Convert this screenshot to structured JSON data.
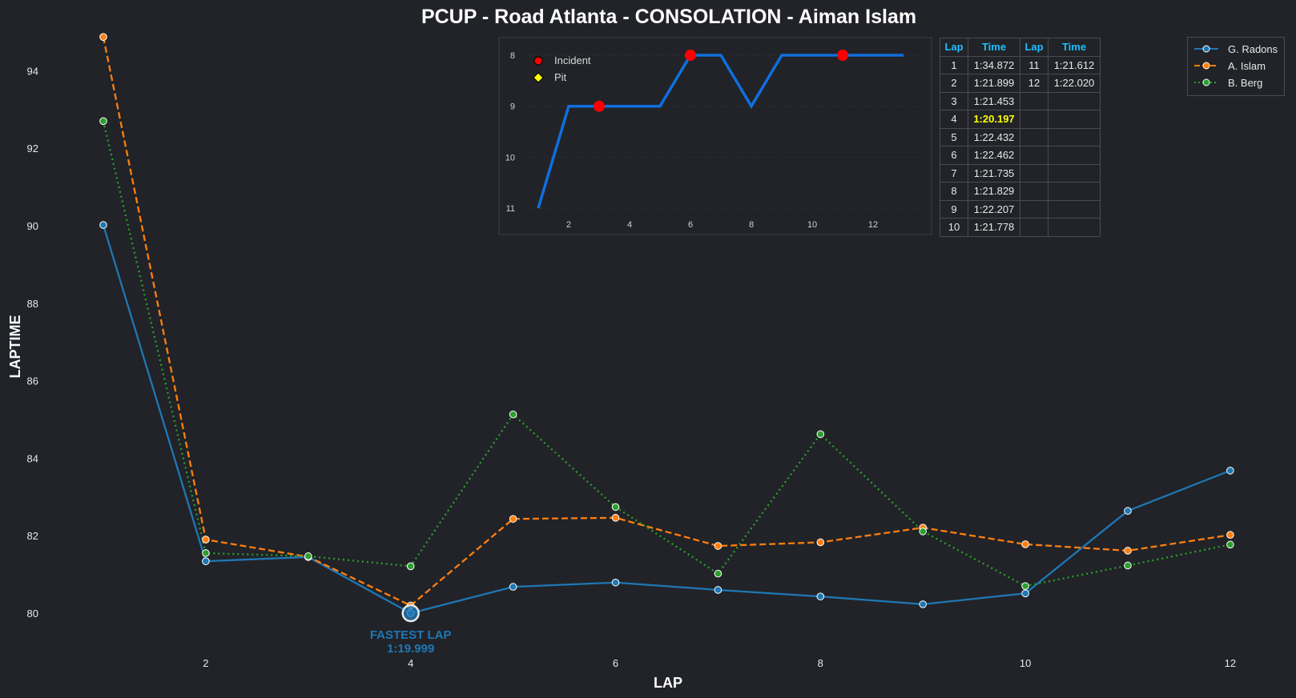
{
  "chart_data": [
    {
      "type": "line",
      "title": "PCUP - Road Atlanta - CONSOLATION - Aiman Islam",
      "xlabel": "LAP",
      "ylabel": "LAPTIME",
      "x": [
        1,
        2,
        3,
        4,
        5,
        6,
        7,
        8,
        9,
        10,
        11,
        12
      ],
      "xlim": [
        0.55,
        12.5
      ],
      "ylim": [
        79,
        95
      ],
      "xticks": [
        2,
        4,
        6,
        8,
        10,
        12
      ],
      "yticks": [
        80,
        82,
        84,
        86,
        88,
        90,
        92,
        94
      ],
      "grid": false,
      "legend_position": "top-right",
      "series": [
        {
          "name": "G. Radons",
          "color": "#1f77b4",
          "style": "solid",
          "values": [
            90.02,
            81.34,
            81.45,
            79.999,
            80.68,
            80.79,
            80.6,
            80.43,
            80.23,
            80.51,
            82.64,
            83.68
          ]
        },
        {
          "name": "A. Islam",
          "color": "#ff7f0e",
          "style": "dashed",
          "values": [
            94.872,
            81.899,
            81.453,
            80.197,
            82.432,
            82.462,
            81.735,
            81.829,
            82.207,
            81.778,
            81.612,
            82.02
          ]
        },
        {
          "name": "B. Berg",
          "color": "#2ca02c",
          "style": "dotted",
          "values": [
            92.7,
            81.55,
            81.47,
            81.21,
            85.13,
            82.74,
            81.02,
            84.62,
            82.11,
            80.7,
            81.23,
            81.77
          ]
        }
      ],
      "annotation": {
        "lap": 4,
        "value": 79.999,
        "line1": "FASTEST LAP",
        "line2": "1:19.999",
        "color": "#1f77b4"
      }
    },
    {
      "type": "line",
      "title": "",
      "x": [
        1,
        2,
        3,
        4,
        5,
        6,
        7,
        8,
        9,
        10,
        11,
        12,
        13
      ],
      "values": [
        11,
        9,
        9,
        9,
        9,
        8,
        8,
        9,
        8,
        8,
        8,
        8,
        8
      ],
      "y_inverted": true,
      "ylim": [
        11,
        8
      ],
      "xticks": [
        2,
        4,
        6,
        8,
        10,
        12
      ],
      "yticks": [
        8,
        9,
        10,
        11
      ],
      "grid": "horizontal-dotted",
      "line_color": "#0f6fde",
      "incident_laps": [
        3,
        6,
        11
      ],
      "pit_laps": [],
      "legend": [
        {
          "label": "Incident",
          "marker": "circle",
          "color": "#ff0000"
        },
        {
          "label": "Pit",
          "marker": "diamond",
          "color": "#ffff00"
        }
      ]
    }
  ],
  "table": {
    "headers": [
      "Lap",
      "Time",
      "Lap",
      "Time"
    ],
    "best_lap": 4,
    "rows": [
      [
        "1",
        "1:34.872",
        "11",
        "1:21.612"
      ],
      [
        "2",
        "1:21.899",
        "12",
        "1:22.020"
      ],
      [
        "3",
        "1:21.453",
        "",
        ""
      ],
      [
        "4",
        "1:20.197",
        "",
        ""
      ],
      [
        "5",
        "1:22.432",
        "",
        ""
      ],
      [
        "6",
        "1:22.462",
        "",
        ""
      ],
      [
        "7",
        "1:21.735",
        "",
        ""
      ],
      [
        "8",
        "1:21.829",
        "",
        ""
      ],
      [
        "9",
        "1:22.207",
        "",
        ""
      ],
      [
        "10",
        "1:21.778",
        "",
        ""
      ]
    ]
  }
}
